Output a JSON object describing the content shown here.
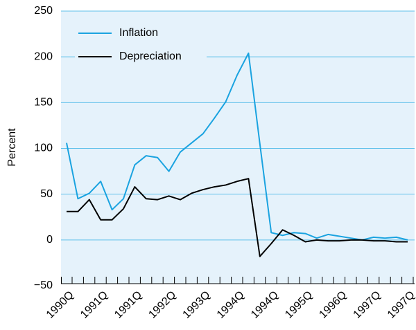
{
  "chart_data": {
    "type": "line",
    "y_label": "Percent",
    "categories": [
      "1990Q",
      null,
      null,
      "1991Q",
      null,
      null,
      "1991Q",
      null,
      null,
      "1992Q",
      null,
      null,
      "1993Q",
      null,
      null,
      "1994Q",
      null,
      null,
      "1994Q",
      null,
      null,
      "1995Q",
      null,
      null,
      "1996Q",
      null,
      null,
      "1997Q",
      null,
      null,
      "1997Q"
    ],
    "series": [
      {
        "name": "Inflation",
        "color": "#1aa3e0",
        "values": [
          106,
          45,
          51,
          64,
          33,
          45,
          82,
          92,
          90,
          75,
          96,
          106,
          116,
          133,
          151,
          180,
          204,
          105,
          8,
          5,
          8,
          7,
          2,
          6,
          4,
          2,
          0,
          3,
          2,
          3,
          0
        ]
      },
      {
        "name": "Depreciation",
        "color": "#000000",
        "values": [
          31,
          31,
          44,
          22,
          22,
          34,
          58,
          45,
          44,
          48,
          44,
          51,
          55,
          58,
          60,
          64,
          67,
          -18,
          -4,
          11,
          5,
          -2,
          0,
          -1,
          -1,
          0,
          0,
          -1,
          -1,
          -2,
          -2
        ]
      }
    ],
    "ylim": [
      -50,
      250
    ],
    "yticks": [
      {
        "value": -50,
        "label": "−50"
      },
      0,
      50,
      100,
      150,
      200,
      250
    ],
    "grid": true,
    "legend": "top-left"
  }
}
